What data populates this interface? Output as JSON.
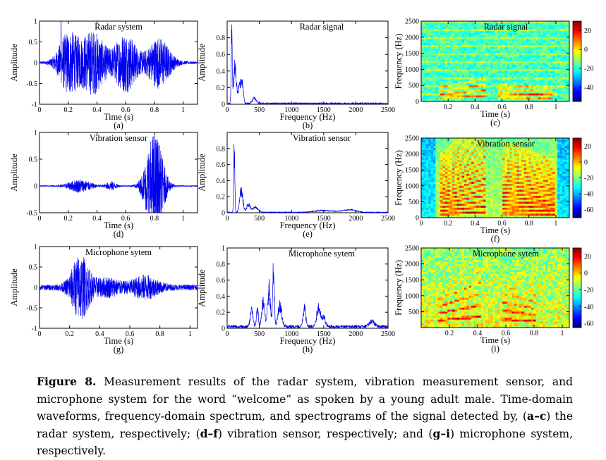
{
  "figure_label": "Figure 8.",
  "caption": {
    "p1": "Measurement results of the radar system, vibration measurement sensor, and microphone system for the word “welcome” as spoken by a young adult male.  Time-domain waveforms, frequency-domain spectrum, and spectrograms of the signal detected by, (",
    "b1": "a",
    "d1": "–",
    "b2": "c",
    "p2": ") the radar system, respectively; (",
    "b3": "d",
    "d2": "–",
    "b4": "f",
    "p3": ") vibration sensor, respectively; and (",
    "b5": "g",
    "d3": "–",
    "b6": "i",
    "p4": ") microphone system, respectively."
  },
  "chart_data": [
    {
      "type": "line",
      "subplot": "(a)",
      "signal": "time",
      "title": "Radar system",
      "xlabel": "Time (s)",
      "ylabel": "Amplitude",
      "xlim": [
        0,
        1.1
      ],
      "ylim": [
        -1,
        1
      ],
      "xticks": [
        0,
        0.2,
        0.4,
        0.6,
        0.8,
        1
      ],
      "yticks": [
        -1,
        -0.5,
        0,
        0.5,
        1
      ],
      "xticklabels": [
        "0",
        "0.2",
        "0.4",
        "0.6",
        "0.8",
        "1"
      ],
      "yticklabels": [
        "-1",
        "-0.5",
        "0",
        "0.5",
        "1"
      ],
      "bursts": [
        {
          "t": 0.2,
          "w": 0.08,
          "a": 0.7
        },
        {
          "t": 0.37,
          "w": 0.1,
          "a": 0.75
        },
        {
          "t": 0.6,
          "w": 0.09,
          "a": 0.7
        },
        {
          "t": 0.83,
          "w": 0.09,
          "a": 0.6
        }
      ],
      "noise": 0.03,
      "spike": {
        "t": 0.15,
        "a": 1.0
      },
      "color": "#0000ee"
    },
    {
      "type": "line",
      "subplot": "(b)",
      "signal": "spectrum",
      "title": "Radar signal",
      "xlabel": "Frequency (Hz)",
      "ylabel": "Amplitude",
      "xlim": [
        0,
        2500
      ],
      "ylim": [
        0,
        1
      ],
      "xticks": [
        0,
        500,
        1000,
        1500,
        2000,
        2500
      ],
      "yticks": [
        0,
        0.2,
        0.4,
        0.6,
        0.8
      ],
      "xticklabels": [
        "0",
        "500",
        "1000",
        "1500",
        "2000",
        "2500"
      ],
      "yticklabels": [
        "0",
        "0.2",
        "0.4",
        "0.6",
        "0.8"
      ],
      "peaks": [
        {
          "f": 70,
          "a": 1.0,
          "w": 12
        },
        {
          "f": 120,
          "a": 0.55,
          "w": 30
        },
        {
          "f": 200,
          "a": 0.3,
          "w": 40
        },
        {
          "f": 240,
          "a": 0.2,
          "w": 20
        },
        {
          "f": 420,
          "a": 0.08,
          "w": 40
        }
      ],
      "floor": 0.02,
      "color": "#0000ee"
    },
    {
      "type": "heatmap",
      "subplot": "(c)",
      "title": "Radar signal",
      "xlabel": "Time (s)",
      "ylabel": "Frequency (Hz)",
      "xlim": [
        0,
        1.1
      ],
      "ylim": [
        0,
        2500
      ],
      "xticks": [
        0.2,
        0.4,
        0.6,
        0.8,
        1
      ],
      "yticks": [
        0,
        500,
        1000,
        1500,
        2000,
        2500
      ],
      "xticklabels": [
        "0.2",
        "0.4",
        "0.6",
        "0.8",
        "1"
      ],
      "yticklabels": [
        "0",
        "500",
        "1000",
        "1500",
        "2000",
        "2500"
      ],
      "colorbar": {
        "range": [
          -55,
          30
        ],
        "ticks": [
          20,
          0,
          -20,
          -40
        ],
        "ticklabels": [
          "20",
          "0",
          "-20",
          "-40"
        ]
      },
      "background": -18,
      "segments": [
        [
          0.15,
          0.48
        ],
        [
          0.56,
          0.98
        ]
      ],
      "f0": 110,
      "harmonics": 4,
      "texture": "stripes"
    },
    {
      "type": "line",
      "subplot": "(d)",
      "signal": "time",
      "title": "Vibration sensor",
      "xlabel": "Time (s)",
      "ylabel": "Amplitude",
      "xlim": [
        0,
        1.1
      ],
      "ylim": [
        -0.5,
        1
      ],
      "xticks": [
        0,
        0.2,
        0.4,
        0.6,
        0.8,
        1
      ],
      "yticks": [
        -0.5,
        0,
        0.5,
        1
      ],
      "xticklabels": [
        "0",
        "0.2",
        "0.4",
        "0.6",
        "0.8",
        "1"
      ],
      "yticklabels": [
        "-0.5",
        "0",
        "0.5",
        "1"
      ],
      "bursts": [
        {
          "t": 0.28,
          "w": 0.09,
          "a": 0.12
        },
        {
          "t": 0.5,
          "w": 0.04,
          "a": 0.08
        },
        {
          "t": 0.8,
          "w": 0.07,
          "a": 1.0
        }
      ],
      "noise": 0.01,
      "color": "#0000ee"
    },
    {
      "type": "line",
      "subplot": "(e)",
      "signal": "spectrum",
      "title": "Vibration sensor",
      "xlabel": "Frequency (Hz)",
      "ylabel": "Amplitude",
      "xlim": [
        0,
        2500
      ],
      "ylim": [
        0,
        1
      ],
      "xticks": [
        0,
        500,
        1000,
        1500,
        2000,
        2500
      ],
      "yticks": [
        0,
        0.2,
        0.4,
        0.6,
        0.8
      ],
      "xticklabels": [
        "0",
        "500",
        "1000",
        "1500",
        "2000",
        "2500"
      ],
      "yticklabels": [
        "0",
        "0.2",
        "0.4",
        "0.6",
        "0.8"
      ],
      "peaks": [
        {
          "f": 110,
          "a": 1.0,
          "w": 12
        },
        {
          "f": 220,
          "a": 0.35,
          "w": 35
        },
        {
          "f": 330,
          "a": 0.12,
          "w": 40
        },
        {
          "f": 440,
          "a": 0.08,
          "w": 60
        },
        {
          "f": 1500,
          "a": 0.03,
          "w": 200
        },
        {
          "f": 1900,
          "a": 0.04,
          "w": 150
        }
      ],
      "floor": 0.01,
      "color": "#0000ee"
    },
    {
      "type": "heatmap",
      "subplot": "(f)",
      "title": "Vibration sensor",
      "xlabel": "Time (s)",
      "ylabel": "Frequency (Hz)",
      "xlim": [
        0,
        1.1
      ],
      "ylim": [
        0,
        2500
      ],
      "xticks": [
        0,
        0.2,
        0.4,
        0.6,
        0.8,
        1
      ],
      "yticks": [
        0,
        500,
        1000,
        1500,
        2000,
        2500
      ],
      "xticklabels": [
        "0",
        "0.2",
        "0.4",
        "0.6",
        "0.8",
        "1"
      ],
      "yticklabels": [
        "0",
        "500",
        "1000",
        "1500",
        "2000",
        "2500"
      ],
      "colorbar": {
        "range": [
          -70,
          30
        ],
        "ticks": [
          20,
          0,
          -20,
          -40,
          -60
        ],
        "ticklabels": [
          "20",
          "0",
          "-20",
          "-40",
          "-60"
        ]
      },
      "background": -15,
      "segments": [
        [
          0.15,
          0.48
        ],
        [
          0.6,
          1.0
        ]
      ],
      "f0": 110,
      "harmonics": 18,
      "texture": "smooth"
    },
    {
      "type": "line",
      "subplot": "(g)",
      "signal": "time",
      "title": "Microphone sytem",
      "xlabel": "Time (s)",
      "ylabel": "Amplitude",
      "xlim": [
        0,
        1.05
      ],
      "ylim": [
        -1,
        1
      ],
      "xticks": [
        0,
        0.2,
        0.4,
        0.6,
        0.8,
        1
      ],
      "yticks": [
        -1,
        -0.5,
        0,
        0.5,
        1
      ],
      "xticklabels": [
        "0",
        "0.2",
        "0.4",
        "0.6",
        "0.8",
        "1"
      ],
      "yticklabels": [
        "-1",
        "-0.5",
        "0",
        "0.5",
        "1"
      ],
      "bursts": [
        {
          "t": 0.27,
          "w": 0.07,
          "a": 0.75
        },
        {
          "t": 0.45,
          "w": 0.1,
          "a": 0.2
        },
        {
          "t": 0.7,
          "w": 0.1,
          "a": 0.25
        }
      ],
      "noise": 0.07,
      "color": "#0000ee"
    },
    {
      "type": "line",
      "subplot": "(h)",
      "signal": "spectrum",
      "title": "Microphone sytem",
      "xlabel": "Frequency (Hz)",
      "ylabel": "Amplitude",
      "xlim": [
        0,
        2500
      ],
      "ylim": [
        0,
        1
      ],
      "xticks": [
        0,
        500,
        1000,
        1500,
        2000,
        2500
      ],
      "yticks": [
        0,
        0.2,
        0.4,
        0.6,
        0.8,
        1
      ],
      "xticklabels": [
        "0",
        "500",
        "1000",
        "1500",
        "2000",
        "2500"
      ],
      "yticklabels": [
        "0",
        "0.2",
        "0.4",
        "0.6",
        "0.8",
        "1"
      ],
      "peaks": [
        {
          "f": 380,
          "a": 0.25,
          "w": 30
        },
        {
          "f": 470,
          "a": 0.3,
          "w": 20
        },
        {
          "f": 560,
          "a": 0.4,
          "w": 30
        },
        {
          "f": 650,
          "a": 0.6,
          "w": 30
        },
        {
          "f": 720,
          "a": 0.9,
          "w": 18
        },
        {
          "f": 820,
          "a": 0.35,
          "w": 40
        },
        {
          "f": 1200,
          "a": 0.3,
          "w": 30
        },
        {
          "f": 1420,
          "a": 0.3,
          "w": 40
        },
        {
          "f": 1500,
          "a": 0.15,
          "w": 40
        },
        {
          "f": 2250,
          "a": 0.08,
          "w": 60
        }
      ],
      "floor": 0.04,
      "color": "#0000ee"
    },
    {
      "type": "heatmap",
      "subplot": "(i)",
      "title": "Microphone sytem",
      "xlabel": "Time (s)",
      "ylabel": "Frequency (Hz)",
      "xlim": [
        0,
        1.05
      ],
      "ylim": [
        0,
        2500
      ],
      "xticks": [
        0.2,
        0.4,
        0.6,
        0.8,
        1
      ],
      "yticks": [
        500,
        1000,
        1500,
        2000,
        2500
      ],
      "xticklabels": [
        "0.2",
        "0.4",
        "0.6",
        "0.8",
        "1"
      ],
      "yticklabels": [
        "500",
        "1000",
        "1500",
        "2000",
        "2500"
      ],
      "colorbar": {
        "range": [
          -65,
          30
        ],
        "ticks": [
          20,
          0,
          -20,
          -40,
          -60
        ],
        "ticklabels": [
          "20",
          "0",
          "-20",
          "-40",
          "-60"
        ]
      },
      "background": -8,
      "segments": [
        [
          0.12,
          0.42
        ],
        [
          0.58,
          0.82
        ]
      ],
      "f0": 220,
      "harmonics": 5,
      "texture": "noisy"
    }
  ]
}
